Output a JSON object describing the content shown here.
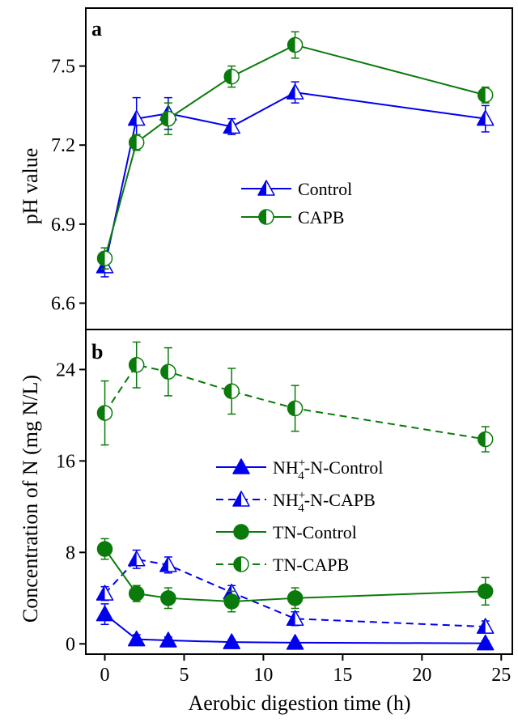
{
  "figure": {
    "xlabel": "Aerobic digestion time (h)",
    "x_ticks": [
      0,
      5,
      10,
      15,
      20,
      25
    ],
    "xlim": [
      -1.2,
      25.7
    ]
  },
  "chart_data": [
    {
      "type": "line",
      "panel": "a",
      "ylabel": "pH value",
      "ylim": [
        6.5,
        7.72
      ],
      "y_ticks": [
        6.6,
        6.9,
        7.2,
        7.5
      ],
      "x": [
        0,
        2,
        4,
        8,
        12,
        24
      ],
      "legend_placement": "center",
      "series": [
        {
          "name": "Control",
          "values": [
            6.74,
            7.3,
            7.32,
            7.27,
            7.4,
            7.3
          ],
          "errors": [
            0.04,
            0.08,
            0.06,
            0.03,
            0.04,
            0.05
          ],
          "color": "#0000ee",
          "marker": "half-filled-triangle",
          "line": "solid"
        },
        {
          "name": "CAPB",
          "values": [
            6.77,
            7.21,
            7.3,
            7.46,
            7.58,
            7.39
          ],
          "errors": [
            0.04,
            0.03,
            0.06,
            0.04,
            0.05,
            0.03
          ],
          "color": "#0a7a0a",
          "marker": "half-filled-circle",
          "line": "solid"
        }
      ]
    },
    {
      "type": "line",
      "panel": "b",
      "ylabel": "Concentration of N (mg N/L)",
      "ylim": [
        -0.9,
        27.5
      ],
      "y_ticks": [
        0,
        8,
        16,
        24
      ],
      "x": [
        0,
        2,
        4,
        8,
        12,
        24
      ],
      "legend_placement": "center-left",
      "series": [
        {
          "name_main": "NH",
          "name_sup": "+",
          "name_sub": "4",
          "name_rest": "-N-Control",
          "values": [
            2.6,
            0.4,
            0.3,
            0.15,
            0.1,
            0.05
          ],
          "errors": [
            0.9,
            0.4,
            0.3,
            0.2,
            0.2,
            0.2
          ],
          "color": "#0000ee",
          "marker": "filled-triangle",
          "line": "solid"
        },
        {
          "name_main": "NH",
          "name_sup": "+",
          "name_sub": "4",
          "name_rest": "-N-CAPB",
          "values": [
            4.4,
            7.4,
            6.9,
            4.5,
            2.2,
            1.5
          ],
          "errors": [
            0.6,
            0.8,
            0.7,
            0.6,
            0.6,
            0.5
          ],
          "color": "#0000ee",
          "marker": "half-filled-triangle",
          "line": "dashed"
        },
        {
          "name": "TN-Control",
          "values": [
            8.3,
            4.4,
            4.0,
            3.7,
            4.0,
            4.6
          ],
          "errors": [
            0.9,
            0.7,
            0.9,
            0.9,
            0.9,
            1.2
          ],
          "color": "#0a7a0a",
          "marker": "filled-circle",
          "line": "solid"
        },
        {
          "name": "TN-CAPB",
          "values": [
            20.2,
            24.4,
            23.8,
            22.1,
            20.6,
            17.9
          ],
          "errors": [
            2.8,
            2.0,
            2.1,
            2.0,
            2.0,
            1.1
          ],
          "color": "#0a7a0a",
          "marker": "half-filled-circle",
          "line": "dashed"
        }
      ]
    }
  ]
}
